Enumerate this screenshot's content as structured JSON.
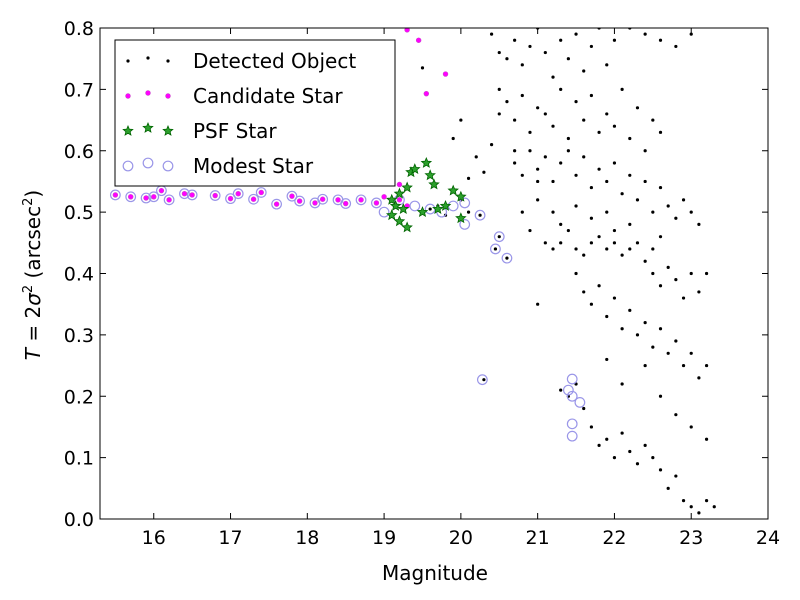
{
  "chart_data": {
    "type": "scatter",
    "xlabel": "Magnitude",
    "ylabel_parts": {
      "lhs": "T",
      "eq": " = 2",
      "sigma": "σ",
      "sup1": "2",
      "unit_open": " (arcsec",
      "sup2": "2",
      "unit_close": ")"
    },
    "xlim": [
      15.3,
      24.0
    ],
    "ylim": [
      0.0,
      0.8
    ],
    "xticks": [
      "16",
      "17",
      "18",
      "19",
      "20",
      "21",
      "22",
      "23",
      "24"
    ],
    "yticks": [
      "0.0",
      "0.1",
      "0.2",
      "0.3",
      "0.4",
      "0.5",
      "0.6",
      "0.7",
      "0.8"
    ],
    "legend_position": "upper-left",
    "colors": {
      "detected": "#000000",
      "candidate": "#ff00ff",
      "psf_fill": "#2ca02c",
      "psf_edge": "#006400",
      "modest": "#9a96e8"
    },
    "series": [
      {
        "name": "Detected Object",
        "marker": "dot",
        "points": [
          [
            15.5,
            0.528
          ],
          [
            15.7,
            0.525
          ],
          [
            15.9,
            0.523
          ],
          [
            16.0,
            0.525
          ],
          [
            16.1,
            0.535
          ],
          [
            16.2,
            0.52
          ],
          [
            16.4,
            0.53
          ],
          [
            16.5,
            0.528
          ],
          [
            16.8,
            0.527
          ],
          [
            17.0,
            0.522
          ],
          [
            17.1,
            0.53
          ],
          [
            17.3,
            0.521
          ],
          [
            17.4,
            0.532
          ],
          [
            17.6,
            0.513
          ],
          [
            17.8,
            0.526
          ],
          [
            17.9,
            0.518
          ],
          [
            18.1,
            0.515
          ],
          [
            18.2,
            0.521
          ],
          [
            18.4,
            0.52
          ],
          [
            18.5,
            0.514
          ],
          [
            18.7,
            0.52
          ],
          [
            18.9,
            0.515
          ],
          [
            19.0,
            0.525
          ],
          [
            19.2,
            0.52
          ],
          [
            19.3,
            0.51
          ],
          [
            19.6,
            0.505
          ],
          [
            19.7,
            0.51
          ],
          [
            19.8,
            0.495
          ],
          [
            20.0,
            0.52
          ],
          [
            20.1,
            0.5
          ],
          [
            19.5,
            0.735
          ],
          [
            19.9,
            0.62
          ],
          [
            20.0,
            0.65
          ],
          [
            20.1,
            0.555
          ],
          [
            20.2,
            0.59
          ],
          [
            20.3,
            0.565
          ],
          [
            20.4,
            0.61
          ],
          [
            20.5,
            0.66
          ],
          [
            20.5,
            0.7
          ],
          [
            20.3,
            0.227
          ],
          [
            20.45,
            0.44
          ],
          [
            20.5,
            0.46
          ],
          [
            20.6,
            0.425
          ],
          [
            20.25,
            0.495
          ],
          [
            20.7,
            0.6
          ],
          [
            20.8,
            0.5
          ],
          [
            20.9,
            0.47
          ],
          [
            21.0,
            0.55
          ],
          [
            21.0,
            0.35
          ],
          [
            21.1,
            0.45
          ],
          [
            21.2,
            0.44
          ],
          [
            21.3,
            0.45
          ],
          [
            21.4,
            0.47
          ],
          [
            21.5,
            0.44
          ],
          [
            21.6,
            0.43
          ],
          [
            21.7,
            0.45
          ],
          [
            21.8,
            0.46
          ],
          [
            21.9,
            0.44
          ],
          [
            22.0,
            0.45
          ],
          [
            22.1,
            0.43
          ],
          [
            22.2,
            0.44
          ],
          [
            22.3,
            0.45
          ],
          [
            22.5,
            0.44
          ],
          [
            22.6,
            0.46
          ],
          [
            20.4,
            0.79
          ],
          [
            20.5,
            0.76
          ],
          [
            20.6,
            0.75
          ],
          [
            20.7,
            0.78
          ],
          [
            20.8,
            0.74
          ],
          [
            20.9,
            0.77
          ],
          [
            21.0,
            0.8
          ],
          [
            21.1,
            0.76
          ],
          [
            21.2,
            0.72
          ],
          [
            21.3,
            0.78
          ],
          [
            21.4,
            0.75
          ],
          [
            21.5,
            0.79
          ],
          [
            21.6,
            0.73
          ],
          [
            21.7,
            0.77
          ],
          [
            21.8,
            0.8
          ],
          [
            21.9,
            0.74
          ],
          [
            22.0,
            0.78
          ],
          [
            22.2,
            0.8
          ],
          [
            22.4,
            0.79
          ],
          [
            22.6,
            0.78
          ],
          [
            22.8,
            0.77
          ],
          [
            23.0,
            0.79
          ],
          [
            20.6,
            0.68
          ],
          [
            20.7,
            0.65
          ],
          [
            20.8,
            0.69
          ],
          [
            20.9,
            0.63
          ],
          [
            21.0,
            0.67
          ],
          [
            21.1,
            0.66
          ],
          [
            21.2,
            0.64
          ],
          [
            21.3,
            0.7
          ],
          [
            21.4,
            0.62
          ],
          [
            21.5,
            0.68
          ],
          [
            21.6,
            0.65
          ],
          [
            21.7,
            0.69
          ],
          [
            21.8,
            0.63
          ],
          [
            21.9,
            0.66
          ],
          [
            22.0,
            0.64
          ],
          [
            22.1,
            0.7
          ],
          [
            22.2,
            0.62
          ],
          [
            22.3,
            0.67
          ],
          [
            22.4,
            0.6
          ],
          [
            22.5,
            0.65
          ],
          [
            22.6,
            0.63
          ],
          [
            20.7,
            0.58
          ],
          [
            20.8,
            0.56
          ],
          [
            20.9,
            0.6
          ],
          [
            21.0,
            0.57
          ],
          [
            21.1,
            0.59
          ],
          [
            21.2,
            0.55
          ],
          [
            21.3,
            0.58
          ],
          [
            21.4,
            0.6
          ],
          [
            21.5,
            0.56
          ],
          [
            21.6,
            0.59
          ],
          [
            21.7,
            0.54
          ],
          [
            21.8,
            0.57
          ],
          [
            21.9,
            0.55
          ],
          [
            22.0,
            0.58
          ],
          [
            22.1,
            0.53
          ],
          [
            22.2,
            0.56
          ],
          [
            22.3,
            0.52
          ],
          [
            22.4,
            0.55
          ],
          [
            22.5,
            0.5
          ],
          [
            22.6,
            0.54
          ],
          [
            22.7,
            0.51
          ],
          [
            22.8,
            0.49
          ],
          [
            22.9,
            0.52
          ],
          [
            23.0,
            0.5
          ],
          [
            23.1,
            0.48
          ],
          [
            21.0,
            0.52
          ],
          [
            21.2,
            0.5
          ],
          [
            21.3,
            0.48
          ],
          [
            21.5,
            0.51
          ],
          [
            21.7,
            0.49
          ],
          [
            21.9,
            0.5
          ],
          [
            22.0,
            0.47
          ],
          [
            22.2,
            0.48
          ],
          [
            22.4,
            0.42
          ],
          [
            22.5,
            0.4
          ],
          [
            22.6,
            0.38
          ],
          [
            22.7,
            0.41
          ],
          [
            22.8,
            0.39
          ],
          [
            22.9,
            0.36
          ],
          [
            23.0,
            0.4
          ],
          [
            23.1,
            0.37
          ],
          [
            23.2,
            0.4
          ],
          [
            21.5,
            0.4
          ],
          [
            21.6,
            0.37
          ],
          [
            21.7,
            0.35
          ],
          [
            21.8,
            0.38
          ],
          [
            21.9,
            0.33
          ],
          [
            22.0,
            0.36
          ],
          [
            22.1,
            0.31
          ],
          [
            22.2,
            0.34
          ],
          [
            22.3,
            0.3
          ],
          [
            22.4,
            0.32
          ],
          [
            22.5,
            0.28
          ],
          [
            22.6,
            0.31
          ],
          [
            22.7,
            0.27
          ],
          [
            22.8,
            0.29
          ],
          [
            22.9,
            0.25
          ],
          [
            23.0,
            0.27
          ],
          [
            23.1,
            0.23
          ],
          [
            23.2,
            0.25
          ],
          [
            21.3,
            0.21
          ],
          [
            21.4,
            0.2
          ],
          [
            21.5,
            0.22
          ],
          [
            21.6,
            0.18
          ],
          [
            21.7,
            0.15
          ],
          [
            21.8,
            0.12
          ],
          [
            21.9,
            0.13
          ],
          [
            22.0,
            0.1
          ],
          [
            22.1,
            0.14
          ],
          [
            22.2,
            0.11
          ],
          [
            22.3,
            0.09
          ],
          [
            22.4,
            0.12
          ],
          [
            22.5,
            0.1
          ],
          [
            22.6,
            0.08
          ],
          [
            22.7,
            0.05
          ],
          [
            22.8,
            0.07
          ],
          [
            22.9,
            0.03
          ],
          [
            23.0,
            0.02
          ],
          [
            23.1,
            0.01
          ],
          [
            23.2,
            0.03
          ],
          [
            23.3,
            0.02
          ],
          [
            22.6,
            0.2
          ],
          [
            22.8,
            0.17
          ],
          [
            23.0,
            0.15
          ],
          [
            23.2,
            0.13
          ],
          [
            22.4,
            0.25
          ],
          [
            21.9,
            0.26
          ],
          [
            22.1,
            0.22
          ]
        ]
      },
      {
        "name": "Candidate Star",
        "marker": "small-circle",
        "points": [
          [
            15.5,
            0.528
          ],
          [
            15.7,
            0.525
          ],
          [
            15.9,
            0.523
          ],
          [
            16.0,
            0.525
          ],
          [
            16.1,
            0.535
          ],
          [
            16.2,
            0.52
          ],
          [
            16.4,
            0.53
          ],
          [
            16.5,
            0.528
          ],
          [
            16.8,
            0.527
          ],
          [
            17.0,
            0.522
          ],
          [
            17.1,
            0.53
          ],
          [
            17.3,
            0.521
          ],
          [
            17.4,
            0.532
          ],
          [
            17.6,
            0.513
          ],
          [
            17.8,
            0.526
          ],
          [
            17.9,
            0.518
          ],
          [
            18.1,
            0.515
          ],
          [
            18.2,
            0.521
          ],
          [
            18.4,
            0.52
          ],
          [
            18.5,
            0.514
          ],
          [
            18.7,
            0.52
          ],
          [
            18.9,
            0.515
          ],
          [
            19.0,
            0.525
          ],
          [
            19.2,
            0.52
          ],
          [
            19.3,
            0.51
          ],
          [
            19.3,
            0.797
          ],
          [
            19.45,
            0.78
          ],
          [
            19.55,
            0.693
          ],
          [
            19.8,
            0.725
          ],
          [
            19.2,
            0.545
          ]
        ]
      },
      {
        "name": "PSF Star",
        "marker": "star",
        "points": [
          [
            19.1,
            0.495
          ],
          [
            19.15,
            0.51
          ],
          [
            19.2,
            0.53
          ],
          [
            19.25,
            0.505
          ],
          [
            19.1,
            0.52
          ],
          [
            19.2,
            0.485
          ],
          [
            19.3,
            0.54
          ],
          [
            19.35,
            0.565
          ],
          [
            19.4,
            0.57
          ],
          [
            19.3,
            0.475
          ],
          [
            19.5,
            0.5
          ],
          [
            19.6,
            0.56
          ],
          [
            19.55,
            0.58
          ],
          [
            19.65,
            0.545
          ],
          [
            19.7,
            0.505
          ],
          [
            19.8,
            0.51
          ],
          [
            19.9,
            0.535
          ],
          [
            20.0,
            0.49
          ],
          [
            20.0,
            0.525
          ]
        ]
      },
      {
        "name": "Modest Star",
        "marker": "open-circle",
        "points": [
          [
            15.5,
            0.528
          ],
          [
            15.7,
            0.525
          ],
          [
            15.9,
            0.523
          ],
          [
            16.0,
            0.525
          ],
          [
            16.1,
            0.535
          ],
          [
            16.2,
            0.52
          ],
          [
            16.4,
            0.53
          ],
          [
            16.5,
            0.528
          ],
          [
            16.8,
            0.527
          ],
          [
            17.0,
            0.522
          ],
          [
            17.1,
            0.53
          ],
          [
            17.3,
            0.521
          ],
          [
            17.4,
            0.532
          ],
          [
            17.6,
            0.513
          ],
          [
            17.8,
            0.526
          ],
          [
            17.9,
            0.518
          ],
          [
            18.1,
            0.515
          ],
          [
            18.2,
            0.521
          ],
          [
            18.4,
            0.52
          ],
          [
            18.5,
            0.514
          ],
          [
            18.7,
            0.52
          ],
          [
            18.9,
            0.515
          ],
          [
            19.0,
            0.5
          ],
          [
            19.2,
            0.52
          ],
          [
            19.4,
            0.51
          ],
          [
            19.6,
            0.505
          ],
          [
            19.75,
            0.5
          ],
          [
            19.9,
            0.51
          ],
          [
            20.05,
            0.515
          ],
          [
            20.05,
            0.48
          ],
          [
            20.25,
            0.495
          ],
          [
            20.28,
            0.227
          ],
          [
            20.45,
            0.44
          ],
          [
            20.5,
            0.46
          ],
          [
            20.6,
            0.425
          ],
          [
            21.45,
            0.228
          ],
          [
            21.4,
            0.21
          ],
          [
            21.45,
            0.2
          ],
          [
            21.55,
            0.19
          ],
          [
            21.45,
            0.155
          ],
          [
            21.45,
            0.135
          ]
        ]
      }
    ]
  }
}
